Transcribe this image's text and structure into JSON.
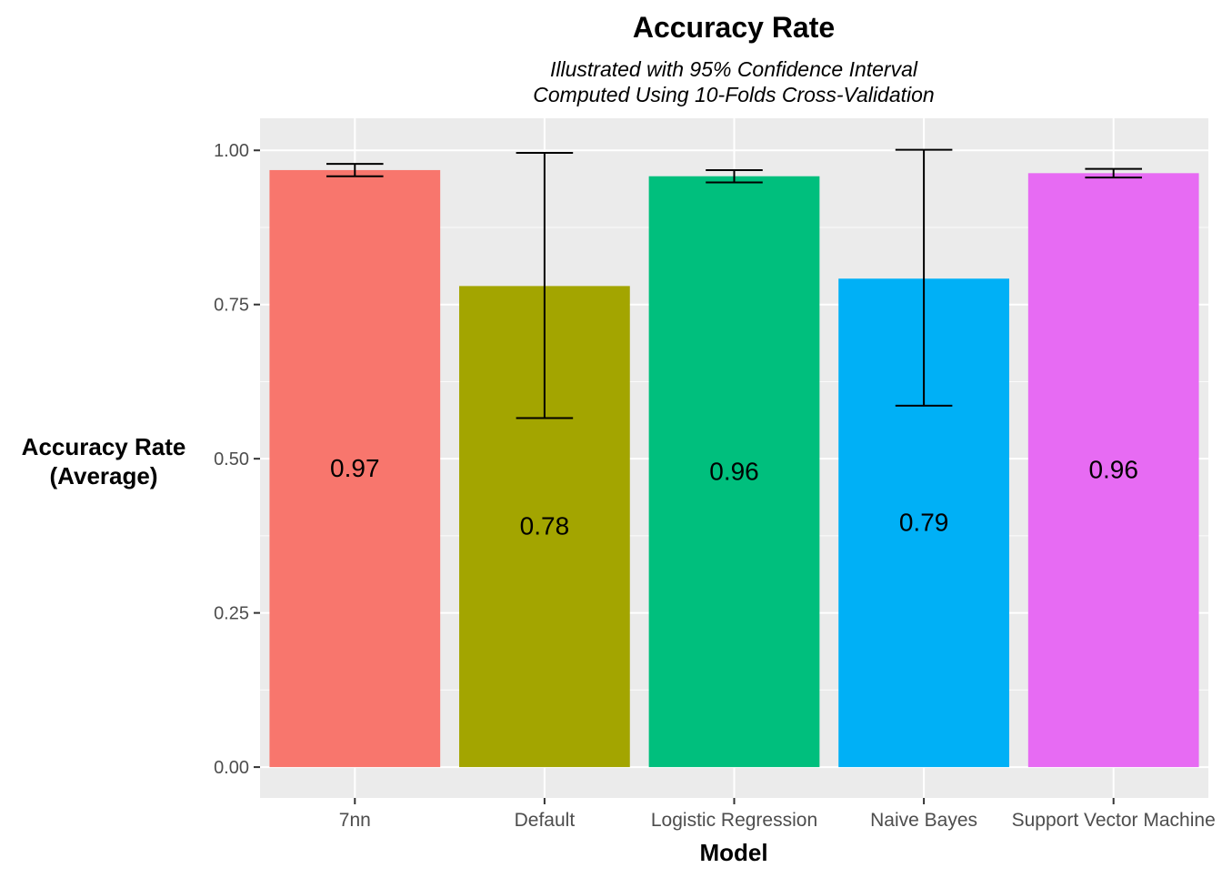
{
  "chart_data": {
    "type": "bar",
    "title": "Accuracy Rate",
    "subtitle_lines": [
      "Illustrated with 95% Confidence Interval",
      "Computed Using 10-Folds Cross-Validation"
    ],
    "xlabel": "Model",
    "ylabel_lines": [
      "Accuracy Rate",
      "(Average)"
    ],
    "categories": [
      "7nn",
      "Default",
      "Logistic Regression",
      "Naive Bayes",
      "Support Vector Machine"
    ],
    "values": [
      0.968,
      0.78,
      0.958,
      0.792,
      0.963
    ],
    "value_labels": [
      "0.97",
      "0.78",
      "0.96",
      "0.79",
      "0.96"
    ],
    "ci_lower": [
      0.958,
      0.566,
      0.948,
      0.586,
      0.956
    ],
    "ci_upper": [
      0.978,
      0.996,
      0.968,
      1.001,
      0.97
    ],
    "colors": [
      "#F8766D",
      "#A3A500",
      "#00BF7D",
      "#00B0F6",
      "#E76BF3"
    ],
    "ylim": [
      -0.05,
      1.052
    ],
    "yticks": [
      0.0,
      0.25,
      0.5,
      0.75,
      1.0
    ],
    "ytick_labels": [
      "0.00",
      "0.25",
      "0.50",
      "0.75",
      "1.00"
    ],
    "panel_background": "#EBEBEB",
    "grid_color": "#FFFFFF",
    "legend": "none"
  }
}
